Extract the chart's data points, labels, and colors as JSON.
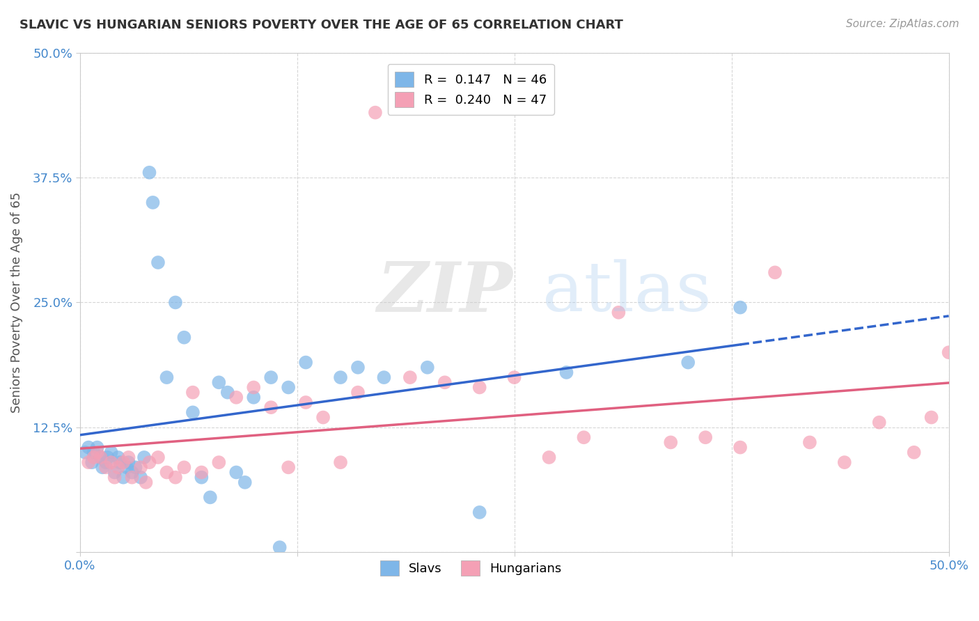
{
  "title": "SLAVIC VS HUNGARIAN SENIORS POVERTY OVER THE AGE OF 65 CORRELATION CHART",
  "source": "Source: ZipAtlas.com",
  "ylabel": "Seniors Poverty Over the Age of 65",
  "xlim": [
    0.0,
    0.5
  ],
  "ylim": [
    0.0,
    0.5
  ],
  "background_color": "#ffffff",
  "grid_color": "#cccccc",
  "slavs_color": "#7EB6E8",
  "hungarians_color": "#F4A0B5",
  "slavs_line_color": "#3366CC",
  "hungarians_line_color": "#E06080",
  "legend_slavs_R": "0.147",
  "legend_slavs_N": "46",
  "legend_hungarians_R": "0.240",
  "legend_hungarians_N": "47",
  "slavs_x": [
    0.003,
    0.005,
    0.007,
    0.008,
    0.01,
    0.012,
    0.013,
    0.015,
    0.016,
    0.018,
    0.02,
    0.022,
    0.023,
    0.025,
    0.027,
    0.028,
    0.03,
    0.032,
    0.035,
    0.037,
    0.04,
    0.042,
    0.045,
    0.05,
    0.055,
    0.06,
    0.065,
    0.07,
    0.075,
    0.08,
    0.085,
    0.09,
    0.095,
    0.1,
    0.11,
    0.115,
    0.12,
    0.13,
    0.15,
    0.16,
    0.175,
    0.2,
    0.23,
    0.28,
    0.35,
    0.38
  ],
  "slavs_y": [
    0.1,
    0.105,
    0.09,
    0.1,
    0.105,
    0.095,
    0.085,
    0.09,
    0.095,
    0.1,
    0.08,
    0.095,
    0.09,
    0.075,
    0.085,
    0.09,
    0.08,
    0.085,
    0.075,
    0.095,
    0.38,
    0.35,
    0.29,
    0.175,
    0.25,
    0.215,
    0.14,
    0.075,
    0.055,
    0.17,
    0.16,
    0.08,
    0.07,
    0.155,
    0.175,
    0.005,
    0.165,
    0.19,
    0.175,
    0.185,
    0.175,
    0.185,
    0.04,
    0.18,
    0.19,
    0.245
  ],
  "hungarians_x": [
    0.005,
    0.008,
    0.01,
    0.012,
    0.015,
    0.018,
    0.02,
    0.022,
    0.025,
    0.028,
    0.03,
    0.035,
    0.038,
    0.04,
    0.045,
    0.05,
    0.055,
    0.06,
    0.065,
    0.07,
    0.08,
    0.09,
    0.1,
    0.11,
    0.12,
    0.13,
    0.14,
    0.15,
    0.16,
    0.17,
    0.19,
    0.21,
    0.23,
    0.25,
    0.27,
    0.29,
    0.31,
    0.34,
    0.36,
    0.38,
    0.4,
    0.42,
    0.44,
    0.46,
    0.48,
    0.49,
    0.5
  ],
  "hungarians_y": [
    0.09,
    0.095,
    0.1,
    0.095,
    0.085,
    0.09,
    0.075,
    0.085,
    0.09,
    0.095,
    0.075,
    0.085,
    0.07,
    0.09,
    0.095,
    0.08,
    0.075,
    0.085,
    0.16,
    0.08,
    0.09,
    0.155,
    0.165,
    0.145,
    0.085,
    0.15,
    0.135,
    0.09,
    0.16,
    0.44,
    0.175,
    0.17,
    0.165,
    0.175,
    0.095,
    0.115,
    0.24,
    0.11,
    0.115,
    0.105,
    0.28,
    0.11,
    0.09,
    0.13,
    0.1,
    0.135,
    0.2
  ]
}
